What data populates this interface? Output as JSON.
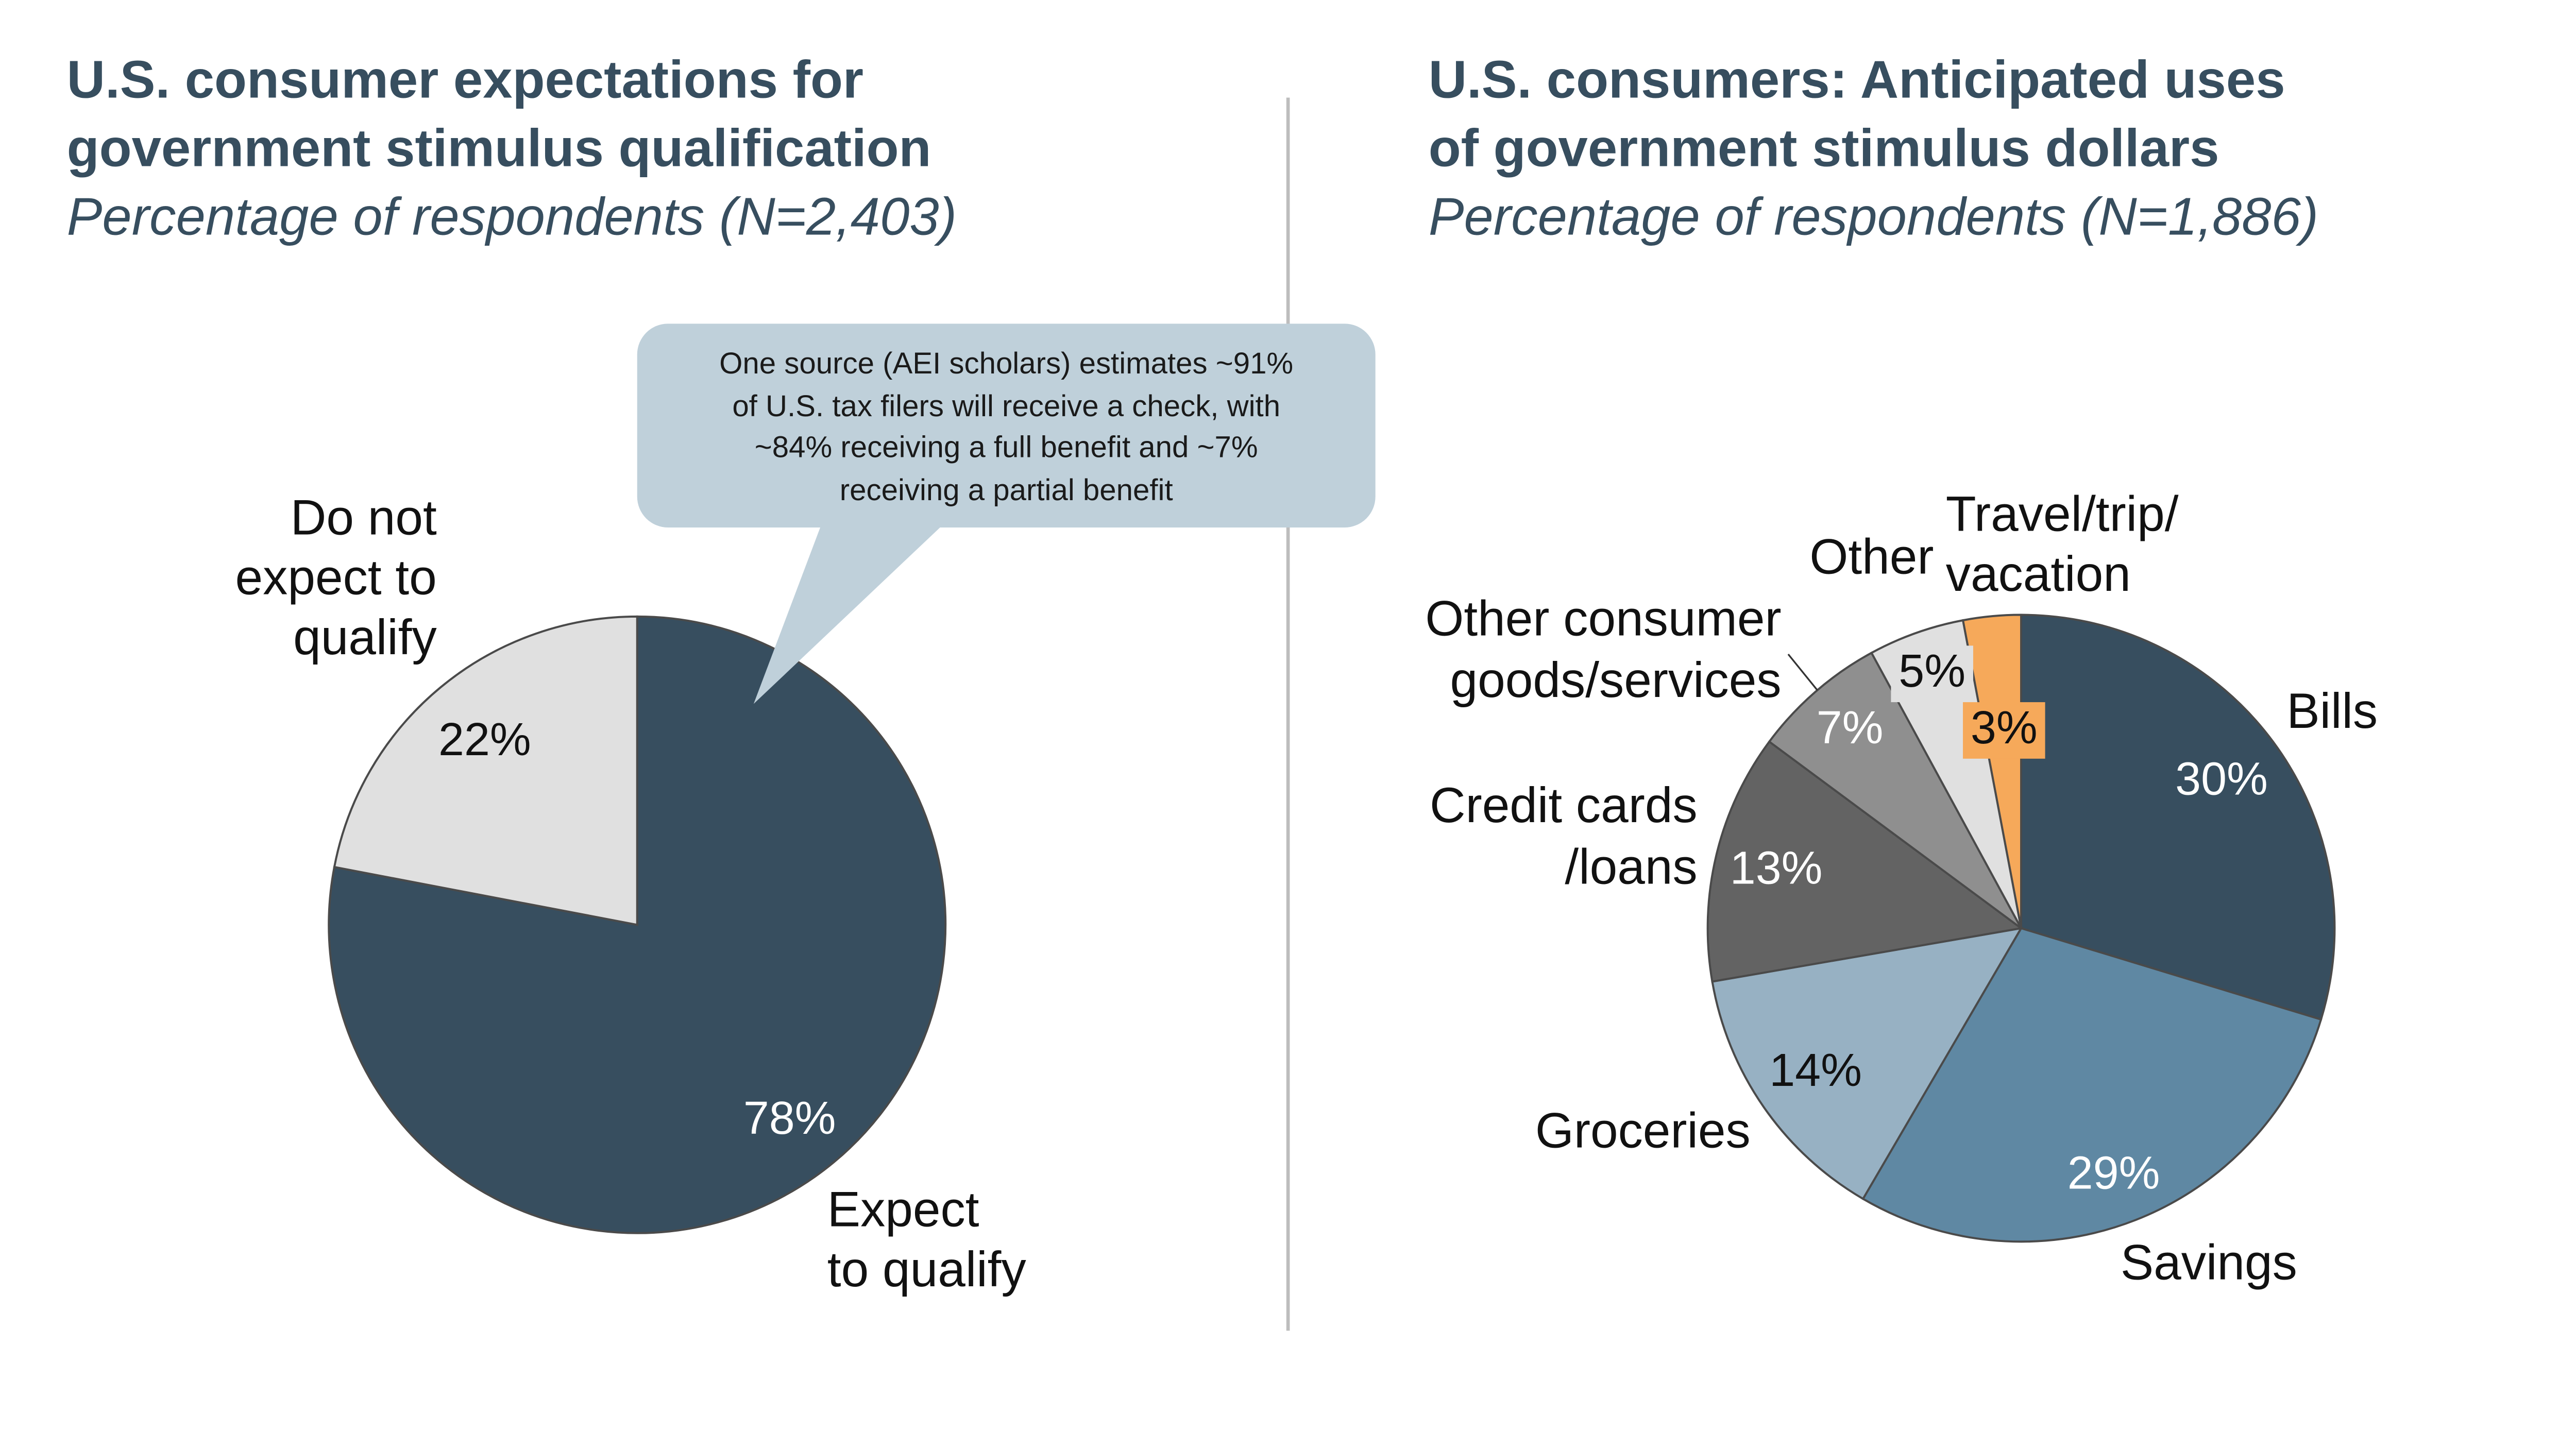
{
  "left": {
    "title_line1": "U.S. consumer expectations for",
    "title_line2": "government stimulus qualification",
    "subtitle": "Percentage of respondents (N=2,403)",
    "callout": {
      "line1": "One source (AEI scholars) estimates ~91%",
      "line2": "of U.S. tax filers will receive a check, with",
      "line3": "~84% receiving a full benefit and ~7%",
      "line4": "receiving a partial benefit"
    }
  },
  "right": {
    "title_line1": "U.S. consumers: Anticipated uses",
    "title_line2": "of government stimulus dollars",
    "subtitle": "Percentage of respondents (N=1,886)"
  },
  "chart_data": [
    {
      "type": "pie",
      "title": "U.S. consumer expectations for government stimulus qualification",
      "subtitle": "Percentage of respondents (N=2,403)",
      "slices": [
        {
          "name": "Expect to qualify",
          "label_lines": [
            "Expect",
            "to qualify"
          ],
          "value": 78,
          "value_label": "78%",
          "color": "#374e5f",
          "text_color": "#ffffff"
        },
        {
          "name": "Do not expect to qualify",
          "label_lines": [
            "Do not",
            "expect to",
            "qualify"
          ],
          "value": 22,
          "value_label": "22%",
          "color": "#e0e0e0",
          "text_color": "#111111"
        }
      ]
    },
    {
      "type": "pie",
      "title": "U.S. consumers: Anticipated uses of government stimulus dollars",
      "subtitle": "Percentage of respondents (N=1,886)",
      "slices": [
        {
          "name": "Bills",
          "label_lines": [
            "Bills"
          ],
          "value": 30,
          "value_label": "30%",
          "color": "#374e5f",
          "text_color": "#ffffff"
        },
        {
          "name": "Savings",
          "label_lines": [
            "Savings"
          ],
          "value": 29,
          "value_label": "29%",
          "color": "#5f88a3",
          "text_color": "#ffffff"
        },
        {
          "name": "Groceries",
          "label_lines": [
            "Groceries"
          ],
          "value": 14,
          "value_label": "14%",
          "color": "#97b1c3",
          "text_color": "#111111"
        },
        {
          "name": "Credit cards/loans",
          "label_lines": [
            "Credit cards",
            "/loans"
          ],
          "value": 13,
          "value_label": "13%",
          "color": "#636363",
          "text_color": "#ffffff"
        },
        {
          "name": "Other consumer goods/services",
          "label_lines": [
            "Other consumer",
            "goods/services"
          ],
          "value": 7,
          "value_label": "7%",
          "color": "#8f8f8f",
          "text_color": "#ffffff"
        },
        {
          "name": "Other",
          "label_lines": [
            "Other"
          ],
          "value": 5,
          "value_label": "5%",
          "color": "#e0e0e0",
          "text_color": "#111111"
        },
        {
          "name": "Travel/trip/vacation",
          "label_lines": [
            "Travel/trip/",
            "vacation"
          ],
          "value": 3,
          "value_label": "3%",
          "color": "#f6a95a",
          "text_color": "#111111"
        }
      ]
    }
  ]
}
